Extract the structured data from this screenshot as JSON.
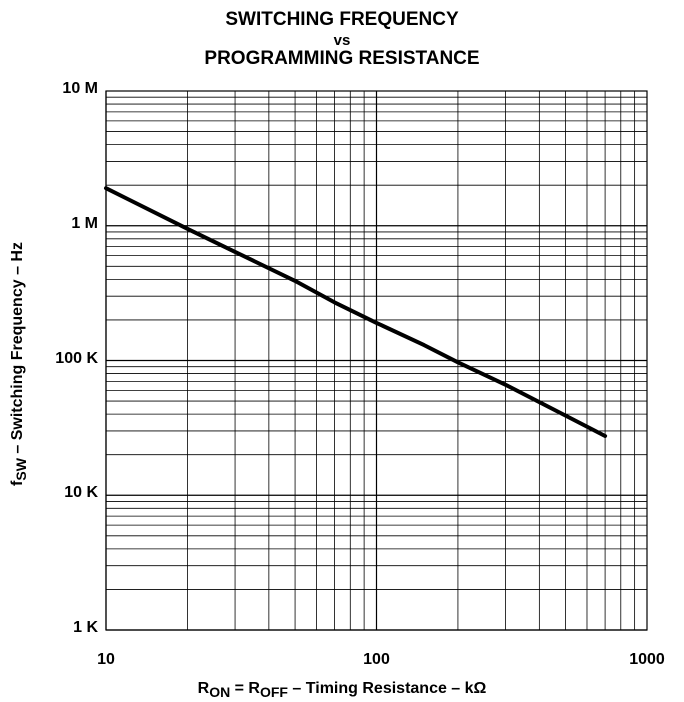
{
  "chart_data": {
    "type": "line",
    "title_line1": "SWITCHING FREQUENCY",
    "title_line2": "vs",
    "title_line3": "PROGRAMMING RESISTANCE",
    "xlabel": {
      "pre": "R",
      "sub1": "ON",
      "mid": " = R",
      "sub2": "OFF",
      "post": " – Timing Resistance – kΩ"
    },
    "ylabel": {
      "pre": "f",
      "sub": "SW",
      "post": " – Switching Frequency – Hz"
    },
    "x_scale": "log",
    "y_scale": "log",
    "xlim": [
      10,
      1000
    ],
    "ylim": [
      1000,
      10000000
    ],
    "x_ticks": [
      {
        "value": 10,
        "label": "10"
      },
      {
        "value": 100,
        "label": "100"
      },
      {
        "value": 1000,
        "label": "1000"
      }
    ],
    "y_ticks": [
      {
        "value": 10000000,
        "label": "10 M"
      },
      {
        "value": 1000000,
        "label": "1 M"
      },
      {
        "value": 100000,
        "label": "100 K"
      },
      {
        "value": 10000,
        "label": "10 K"
      },
      {
        "value": 1000,
        "label": "1 K"
      }
    ],
    "grid": true,
    "series": [
      {
        "x": [
          10,
          20,
          30,
          50,
          70,
          100,
          150,
          200,
          300,
          500,
          700
        ],
        "y": [
          1900000,
          950000,
          640000,
          390000,
          270000,
          190000,
          130000,
          97000,
          66000,
          39000,
          27500
        ]
      }
    ],
    "colors": {
      "line": "#000000",
      "grid": "#000000"
    }
  }
}
